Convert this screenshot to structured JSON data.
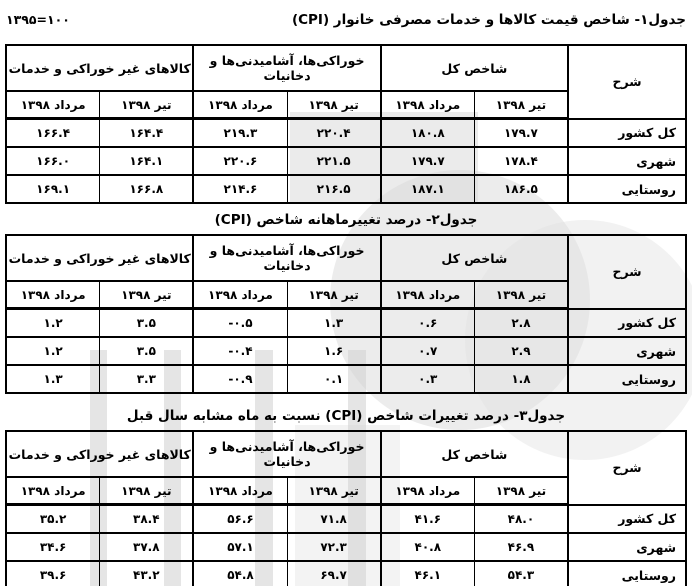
{
  "page": {
    "base_note": "۱۳۹۵=۱۰۰"
  },
  "shared_header": {
    "desc_col": "شرح",
    "months": [
      "تیر ۱۳۹۸",
      "مرداد ۱۳۹۸"
    ],
    "groups": [
      "شاخص کل",
      "خوراکی‌ها، آشامیدنی‌ها و دخانیات",
      "کالاهای غیر خوراکی و خدمات"
    ]
  },
  "tables": [
    {
      "title": "جدول۱- شاخص قیمت کالاها و خدمات مصرفی خانوار (CPI)",
      "col_desc": "شرح",
      "groups": [
        "شاخص کل",
        "خوراکی‌ها، آشامیدنی‌ها و دخانیات",
        "کالاهای غیر خوراکی و خدمات"
      ],
      "sub_months": [
        "تیر ۱۳۹۸",
        "مرداد ۱۳۹۸"
      ],
      "rows": [
        {
          "label": "کل کشور",
          "values": [
            "۱۷۹.۷",
            "۱۸۰.۸",
            "۲۲۰.۴",
            "۲۱۹.۳",
            "۱۶۴.۴",
            "۱۶۶.۴"
          ]
        },
        {
          "label": "شهری",
          "values": [
            "۱۷۸.۴",
            "۱۷۹.۷",
            "۲۲۱.۵",
            "۲۲۰.۶",
            "۱۶۴.۱",
            "۱۶۶.۰"
          ]
        },
        {
          "label": "روستایی",
          "values": [
            "۱۸۶.۵",
            "۱۸۷.۱",
            "۲۱۶.۵",
            "۲۱۴.۶",
            "۱۶۶.۸",
            "۱۶۹.۱"
          ]
        }
      ]
    },
    {
      "title": "جدول۲- درصد تغییرماهانه شاخص (CPI)",
      "col_desc": "شرح",
      "groups": [
        "شاخص کل",
        "خوراکی‌ها، آشامیدنی‌ها و دخانیات",
        "کالاهای غیر خوراکی و خدمات"
      ],
      "sub_months": [
        "تیر ۱۳۹۸",
        "مرداد ۱۳۹۸"
      ],
      "rows": [
        {
          "label": "کل کشور",
          "values": [
            "۲.۸",
            "۰.۶",
            "۱.۳",
            "-۰.۵",
            "۳.۵",
            "۱.۲"
          ]
        },
        {
          "label": "شهری",
          "values": [
            "۲.۹",
            "۰.۷",
            "۱.۶",
            "-۰.۴",
            "۳.۵",
            "۱.۲"
          ]
        },
        {
          "label": "روستایی",
          "values": [
            "۱.۸",
            "۰.۳",
            "۰.۱",
            "-۰.۹",
            "۳.۳",
            "۱.۳"
          ]
        }
      ]
    },
    {
      "title": "جدول۳- درصد تغییرات شاخص (CPI) نسبت به ماه مشابه سال قبل",
      "col_desc": "شرح",
      "groups": [
        "شاخص کل",
        "خوراکی‌ها، آشامیدنی‌ها و دخانیات",
        "کالاهای غیر خوراکی و خدمات"
      ],
      "sub_months": [
        "تیر ۱۳۹۸",
        "مرداد ۱۳۹۸"
      ],
      "rows": [
        {
          "label": "کل کشور",
          "values": [
            "۴۸.۰",
            "۴۱.۶",
            "۷۱.۸",
            "۵۶.۶",
            "۳۸.۴",
            "۳۵.۲"
          ]
        },
        {
          "label": "شهری",
          "values": [
            "۴۶.۹",
            "۴۰.۸",
            "۷۲.۳",
            "۵۷.۱",
            "۳۷.۸",
            "۳۴.۶"
          ]
        },
        {
          "label": "روستایی",
          "values": [
            "۵۴.۳",
            "۴۶.۱",
            "۶۹.۷",
            "۵۴.۸",
            "۴۳.۲",
            "۳۹.۶"
          ]
        }
      ]
    }
  ],
  "watermark": {
    "color_circle": "#dadada",
    "color_bars": "#d4d4d4"
  }
}
